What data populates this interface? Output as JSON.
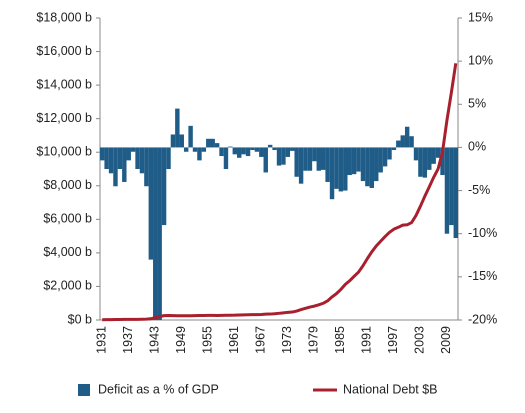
{
  "chart_data": {
    "type": "bar_line",
    "categories": [
      "1931",
      null,
      null,
      null,
      null,
      null,
      "1937",
      null,
      null,
      null,
      null,
      null,
      "1943",
      null,
      null,
      null,
      null,
      null,
      "1949",
      null,
      null,
      null,
      null,
      null,
      "1955",
      null,
      null,
      null,
      null,
      null,
      "1961",
      null,
      null,
      null,
      null,
      null,
      "1967",
      null,
      null,
      null,
      null,
      null,
      "1973",
      null,
      null,
      null,
      null,
      null,
      "1979",
      null,
      null,
      null,
      null,
      null,
      "1985",
      null,
      null,
      null,
      null,
      null,
      "1991",
      null,
      null,
      null,
      null,
      null,
      "1997",
      null,
      null,
      null,
      null,
      null,
      "2003",
      null,
      null,
      null,
      null,
      null,
      "2009",
      null,
      null
    ],
    "series": [
      {
        "name": "Deficit as a % of GDP",
        "type": "bar",
        "axis": "y2",
        "color": "#1f5c87",
        "values": [
          -1.5,
          -2.5,
          -3.0,
          -4.5,
          -2.5,
          -4.0,
          -1.5,
          -0.5,
          -2.5,
          -3.0,
          -4.5,
          -13.0,
          -20,
          -20,
          -9.0,
          -2.5,
          1.5,
          4.5,
          1.5,
          -0.5,
          2.5,
          -0.5,
          -1.5,
          -0.5,
          1.0,
          1.0,
          0.5,
          -1.0,
          -2.5,
          0.1,
          -0.8,
          -1.2,
          -0.8,
          -1.0,
          -0.3,
          -0.5,
          -1.1,
          -2.9,
          0.3,
          -0.3,
          -2.1,
          -2.0,
          -1.1,
          -0.4,
          -3.4,
          -4.2,
          -2.7,
          -2.7,
          -1.6,
          -2.7,
          -2.6,
          -4.0,
          -6.0,
          -4.8,
          -5.1,
          -5.0,
          -3.2,
          -3.1,
          -2.8,
          -3.9,
          -4.5,
          -4.7,
          -3.9,
          -2.9,
          -2.2,
          -1.4,
          -0.3,
          0.8,
          1.4,
          2.4,
          1.3,
          -1.5,
          -3.4,
          -3.5,
          -2.6,
          -1.9,
          -1.2,
          -3.2,
          -10.0,
          -9.0,
          -10.5
        ]
      },
      {
        "name": "National Debt $B",
        "type": "line",
        "axis": "y",
        "color": "#a8202e",
        "values": [
          17,
          19,
          23,
          27,
          29,
          34,
          36,
          37,
          40,
          43,
          49,
          72,
          137,
          201,
          259,
          269,
          258,
          252,
          253,
          257,
          255,
          259,
          266,
          271,
          274,
          273,
          271,
          276,
          285,
          286,
          289,
          298,
          306,
          312,
          317,
          320,
          326,
          348,
          354,
          371,
          398,
          427,
          458,
          475,
          533,
          620,
          699,
          772,
          827,
          908,
          998,
          1142,
          1377,
          1572,
          1823,
          2125,
          2340,
          2602,
          2857,
          3233,
          3665,
          4065,
          4411,
          4693,
          4974,
          5225,
          5413,
          5526,
          5656,
          5674,
          5807,
          6228,
          6783,
          7379,
          7933,
          8507,
          9008,
          10025,
          11910,
          13562,
          15300
        ]
      }
    ],
    "ylim": [
      0,
      18000
    ],
    "yticks": [
      {
        "value": 0,
        "label": "$0 b"
      },
      {
        "value": 2000,
        "label": "$2,000 b"
      },
      {
        "value": 4000,
        "label": "$4,000 b"
      },
      {
        "value": 6000,
        "label": "$6,000 b"
      },
      {
        "value": 8000,
        "label": "$8,000 b"
      },
      {
        "value": 10000,
        "label": "$10,000 b"
      },
      {
        "value": 12000,
        "label": "$12,000 b"
      },
      {
        "value": 14000,
        "label": "$14,000 b"
      },
      {
        "value": 16000,
        "label": "$16,000 b"
      },
      {
        "value": 18000,
        "label": "$18,000 b"
      }
    ],
    "y2lim": [
      -20,
      15
    ],
    "y2ticks": [
      {
        "value": -20,
        "label": "-20%"
      },
      {
        "value": -15,
        "label": "-15%"
      },
      {
        "value": -10,
        "label": "-10%"
      },
      {
        "value": -5,
        "label": "-5%"
      },
      {
        "value": 0,
        "label": "0%"
      },
      {
        "value": 5,
        "label": "5%"
      },
      {
        "value": 10,
        "label": "10%"
      },
      {
        "value": 15,
        "label": "15%"
      }
    ],
    "legend": "bottom",
    "grid": false
  }
}
